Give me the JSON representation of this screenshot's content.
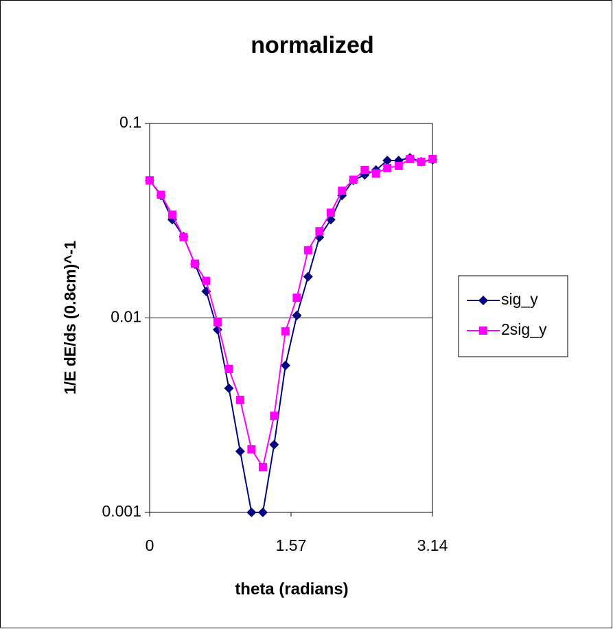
{
  "chart_data": {
    "type": "line",
    "title": "normalized",
    "x_label": "theta (radians)",
    "y_label": "1/E dE/ds (0.8cm)^-1",
    "x": [
      0,
      0.126,
      0.251,
      0.377,
      0.503,
      0.628,
      0.754,
      0.88,
      1.005,
      1.131,
      1.257,
      1.382,
      1.508,
      1.634,
      1.759,
      1.885,
      2.011,
      2.136,
      2.262,
      2.388,
      2.513,
      2.639,
      2.765,
      2.89,
      3.016,
      3.142
    ],
    "series": [
      {
        "name": "sig_y",
        "color": "#000080",
        "marker": "diamond",
        "values": [
          0.051,
          0.0426,
          0.032,
          0.0262,
          0.0189,
          0.0137,
          0.0087,
          0.00435,
          0.00206,
          0.001,
          0.001,
          0.00223,
          0.0057,
          0.0103,
          0.0163,
          0.026,
          0.032,
          0.0426,
          0.051,
          0.0544,
          0.0576,
          0.0645,
          0.0645,
          0.0666,
          0.0635,
          0.065
        ]
      },
      {
        "name": "2sig_y",
        "color": "#ff00ff",
        "marker": "square",
        "values": [
          0.051,
          0.043,
          0.034,
          0.026,
          0.019,
          0.0155,
          0.0095,
          0.00546,
          0.00379,
          0.00211,
          0.00171,
          0.00314,
          0.00853,
          0.0127,
          0.0223,
          0.0279,
          0.0348,
          0.0451,
          0.0514,
          0.0576,
          0.0553,
          0.059,
          0.0605,
          0.0656,
          0.0635,
          0.0656
        ]
      }
    ],
    "xlim": [
      0,
      3.14
    ],
    "xticks": [
      0,
      1.57,
      3.14
    ],
    "ylim": [
      0.001,
      0.1
    ],
    "yticks": [
      0.001,
      0.01,
      0.1
    ],
    "log_y": true,
    "grid": true,
    "legend": "right"
  }
}
